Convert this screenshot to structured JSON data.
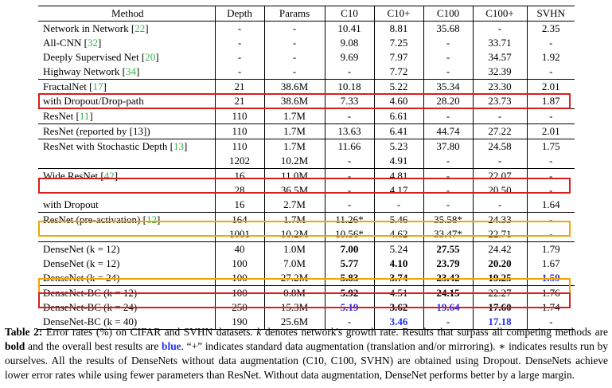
{
  "table": {
    "headers": [
      "Method",
      "Depth",
      "Params",
      "C10",
      "C10+",
      "C100",
      "C100+",
      "SVHN"
    ],
    "groups": [
      [
        {
          "method": "Network in Network",
          "cite": "22",
          "depth": "-",
          "params": "-",
          "c10": "10.41",
          "c10p": "8.81",
          "c100": "35.68",
          "c100p": "-",
          "svhn": "2.35"
        },
        {
          "method": "All-CNN",
          "cite": "32",
          "depth": "-",
          "params": "-",
          "c10": "9.08",
          "c10p": "7.25",
          "c100": "-",
          "c100p": "33.71",
          "svhn": "-"
        },
        {
          "method": "Deeply Supervised Net",
          "cite": "20",
          "depth": "-",
          "params": "-",
          "c10": "9.69",
          "c10p": "7.97",
          "c100": "-",
          "c100p": "34.57",
          "svhn": "1.92"
        },
        {
          "method": "Highway Network",
          "cite": "34",
          "depth": "-",
          "params": "-",
          "c10": "-",
          "c10p": "7.72",
          "c100": "-",
          "c100p": "32.39",
          "svhn": "-"
        }
      ],
      [
        {
          "method": "FractalNet",
          "cite": "17",
          "depth": "21",
          "params": "38.6M",
          "c10": "10.18",
          "c10p": "5.22",
          "c100": "35.34",
          "c100p": "23.30",
          "svhn": "2.01"
        },
        {
          "method": "with Dropout/Drop-path",
          "cite": "",
          "depth": "21",
          "params": "38.6M",
          "c10": "7.33",
          "c10p": "4.60",
          "c100": "28.20",
          "c100p": "23.73",
          "svhn": "1.87"
        }
      ],
      [
        {
          "method": "ResNet",
          "cite": "11",
          "depth": "110",
          "params": "1.7M",
          "c10": "-",
          "c10p": "6.61",
          "c100": "-",
          "c100p": "-",
          "svhn": "-"
        }
      ],
      [
        {
          "method": "ResNet (reported by [13])",
          "cite": "",
          "depth": "110",
          "params": "1.7M",
          "c10": "13.63",
          "c10p": "6.41",
          "c100": "44.74",
          "c100p": "27.22",
          "svhn": "2.01"
        }
      ],
      [
        {
          "method": "ResNet with Stochastic Depth",
          "cite": "13",
          "depth": "110",
          "params": "1.7M",
          "c10": "11.66",
          "c10p": "5.23",
          "c100": "37.80",
          "c100p": "24.58",
          "svhn": "1.75"
        },
        {
          "method": "",
          "cite": "",
          "depth": "1202",
          "params": "10.2M",
          "c10": "-",
          "c10p": "4.91",
          "c100": "-",
          "c100p": "-",
          "svhn": "-"
        }
      ],
      [
        {
          "method": "Wide ResNet",
          "cite": "42",
          "depth": "16",
          "params": "11.0M",
          "c10": "-",
          "c10p": "4.81",
          "c100": "-",
          "c100p": "22.07",
          "svhn": "-"
        },
        {
          "method": "",
          "cite": "",
          "depth": "28",
          "params": "36.5M",
          "c10": "-",
          "c10p": "4.17",
          "c100": "-",
          "c100p": "20.50",
          "svhn": "-"
        },
        {
          "method": "with Dropout",
          "cite": "",
          "depth": "16",
          "params": "2.7M",
          "c10": "-",
          "c10p": "-",
          "c100": "-",
          "c100p": "-",
          "svhn": "1.64"
        }
      ],
      [
        {
          "method": "ResNet (pre-activation)",
          "cite": "12",
          "depth": "164",
          "params": "1.7M",
          "c10": "11.26*",
          "c10p": "5.46",
          "c100": "35.58*",
          "c100p": "24.33",
          "svhn": "-"
        },
        {
          "method": "",
          "cite": "",
          "depth": "1001",
          "params": "10.2M",
          "c10": "10.56*",
          "c10p": "4.62",
          "c100": "33.47*",
          "c100p": "22.71",
          "svhn": "-"
        }
      ],
      [
        {
          "method": "DenseNet (k = 12)",
          "cite": "",
          "depth": "40",
          "params": "1.0M",
          "c10": "7.00",
          "c10p": "5.24",
          "c100": "27.55",
          "c100p": "24.42",
          "svhn": "1.79",
          "bold": [
            "c10",
            "c100"
          ]
        },
        {
          "method": "DenseNet (k = 12)",
          "cite": "",
          "depth": "100",
          "params": "7.0M",
          "c10": "5.77",
          "c10p": "4.10",
          "c100": "23.79",
          "c100p": "20.20",
          "svhn": "1.67",
          "bold": [
            "c10",
            "c10p",
            "c100",
            "c100p"
          ]
        },
        {
          "method": "DenseNet (k = 24)",
          "cite": "",
          "depth": "100",
          "params": "27.2M",
          "c10": "5.83",
          "c10p": "3.74",
          "c100": "23.42",
          "c100p": "19.25",
          "svhn": "1.59",
          "bold": [
            "c10",
            "c10p",
            "c100",
            "c100p"
          ],
          "blue": [
            "svhn"
          ]
        }
      ],
      [
        {
          "method": "DenseNet-BC (k = 12)",
          "cite": "",
          "depth": "100",
          "params": "0.8M",
          "c10": "5.92",
          "c10p": "4.51",
          "c100": "24.15",
          "c100p": "22.27",
          "svhn": "1.76",
          "bold": [
            "c10",
            "c100"
          ]
        },
        {
          "method": "DenseNet-BC (k = 24)",
          "cite": "",
          "depth": "250",
          "params": "15.3M",
          "c10": "5.19",
          "c10p": "3.62",
          "c100": "19.64",
          "c100p": "17.60",
          "svhn": "1.74",
          "bold": [
            "c10p",
            "c100p"
          ],
          "blue": [
            "c10",
            "c100"
          ]
        },
        {
          "method": "DenseNet-BC (k = 40)",
          "cite": "",
          "depth": "190",
          "params": "25.6M",
          "c10": "-",
          "c10p": "3.46",
          "c100": "-",
          "c100p": "17.18",
          "svhn": "-",
          "blue": [
            "c10p",
            "c100p"
          ]
        }
      ]
    ]
  },
  "caption": {
    "label": "Table 2:",
    "text1": " Error rates (%) on CIFAR and SVHN datasets. ",
    "k": "k",
    "text2": " denotes network's growth rate. Results that surpass all competing methods are ",
    "bold_word": "bold",
    "text3": " and the overall best results are ",
    "blue_word": "blue",
    "text4": ". “+” indicates standard data augmentation (translation and/or mirroring). ∗ indicates results run by ourselves. All the results of DenseNets without data augmentation (C10, C100, SVHN) are obtained using Dropout. DenseNets achieve lower error rates while using fewer parameters than ResNet. Without data augmentation, DenseNet performs better by a large margin."
  },
  "colors": {
    "citation": "#2fb344",
    "best": "#2233ee",
    "highlight_red": "#d61f1f",
    "highlight_yellow": "#f0a500"
  }
}
